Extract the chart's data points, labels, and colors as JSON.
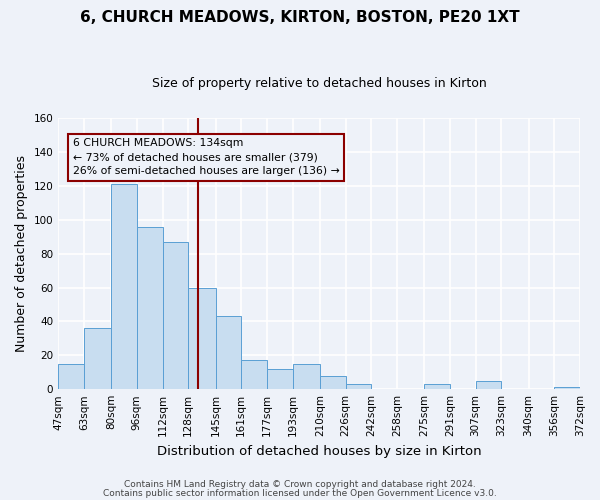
{
  "title": "6, CHURCH MEADOWS, KIRTON, BOSTON, PE20 1XT",
  "subtitle": "Size of property relative to detached houses in Kirton",
  "xlabel": "Distribution of detached houses by size in Kirton",
  "ylabel": "Number of detached properties",
  "bar_color": "#c8ddf0",
  "bar_edge_color": "#5a9fd4",
  "background_color": "#eef2f9",
  "grid_color": "#ffffff",
  "bins_left": [
    47,
    63,
    80,
    96,
    112,
    128,
    145,
    161,
    177,
    193,
    210,
    226,
    242,
    258,
    275,
    291,
    307,
    323,
    340,
    356
  ],
  "bins_right": [
    63,
    80,
    96,
    112,
    128,
    145,
    161,
    177,
    193,
    210,
    226,
    242,
    258,
    275,
    291,
    307,
    323,
    340,
    356,
    372
  ],
  "heights": [
    15,
    36,
    121,
    96,
    87,
    60,
    43,
    17,
    12,
    15,
    8,
    3,
    0,
    0,
    3,
    0,
    5,
    0,
    0,
    1
  ],
  "tick_labels": [
    "47sqm",
    "63sqm",
    "80sqm",
    "96sqm",
    "112sqm",
    "128sqm",
    "145sqm",
    "161sqm",
    "177sqm",
    "193sqm",
    "210sqm",
    "226sqm",
    "242sqm",
    "258sqm",
    "275sqm",
    "291sqm",
    "307sqm",
    "323sqm",
    "340sqm",
    "356sqm",
    "372sqm"
  ],
  "vline_x": 134,
  "vline_color": "#8b0000",
  "ylim": [
    0,
    160
  ],
  "yticks": [
    0,
    20,
    40,
    60,
    80,
    100,
    120,
    140,
    160
  ],
  "annotation_title": "6 CHURCH MEADOWS: 134sqm",
  "annotation_line1": "← 73% of detached houses are smaller (379)",
  "annotation_line2": "26% of semi-detached houses are larger (136) →",
  "footer_line1": "Contains HM Land Registry data © Crown copyright and database right 2024.",
  "footer_line2": "Contains public sector information licensed under the Open Government Licence v3.0."
}
